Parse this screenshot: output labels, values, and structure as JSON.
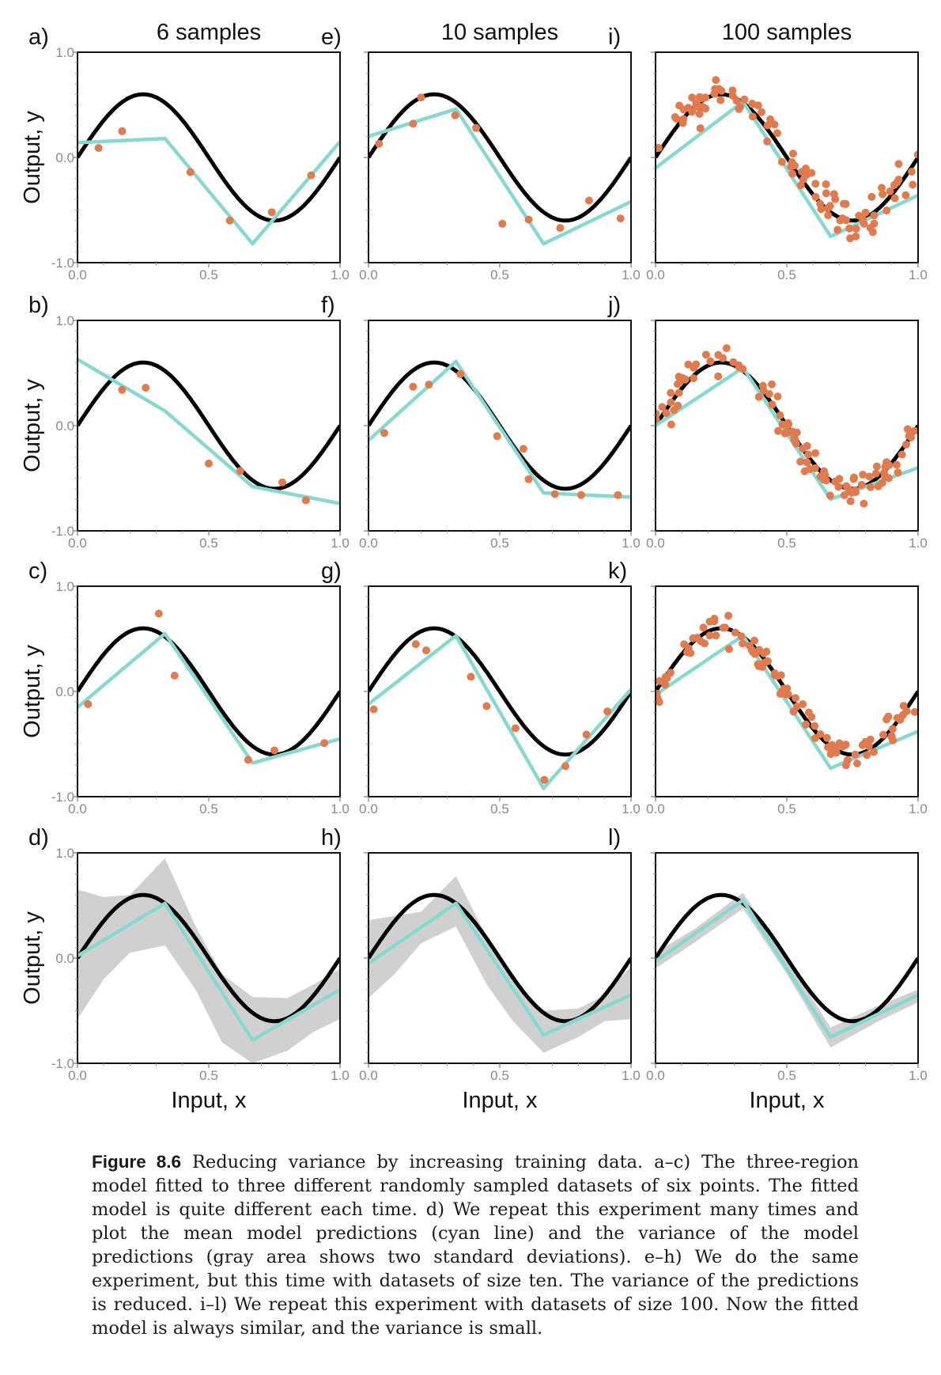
{
  "colors": {
    "truth": "#000000",
    "mean_model": "#88d8d0",
    "data_points": "#e07a4f",
    "variance_band": "#d0d0d0",
    "axes": "#111111"
  },
  "caption": {
    "label": "Figure 8.6",
    "text": " Reducing variance by increasing training data. a–c) The three-region model fitted to three different randomly sampled datasets of six points. The fitted model is quite different each time. d) We repeat this experiment many times and plot the mean model predictions (cyan line) and the variance of the model predictions (gray area shows two standard deviations). e–h) We do the same experiment, but this time with datasets of size ten. The variance of the predictions is reduced. i–l) We repeat this experiment with datasets of size 100. Now the fitted model is always similar, and the variance is small."
  },
  "chart_data": {
    "type": "line",
    "columns": [
      "6 samples",
      "10 samples",
      "100 samples"
    ],
    "xlabel": "Input, x",
    "ylabel": "Output, y",
    "xlim": [
      0,
      1
    ],
    "ylim": [
      -1,
      1
    ],
    "xticks": [
      "0.0",
      "0.5",
      "1.0"
    ],
    "yticks": [
      "-1.0",
      "0.0",
      "1.0"
    ],
    "grid": false,
    "true_function": "y = sin(2πx) scaled, peak ≈0.6 at x≈0.25, trough ≈−0.6 at x≈0.75",
    "panels": [
      {
        "label": "a)",
        "col": 0,
        "row": 0,
        "fit": [
          [
            0,
            0.14
          ],
          [
            0.333,
            0.18
          ],
          [
            0.667,
            -0.82
          ],
          [
            1,
            0.15
          ]
        ],
        "points": [
          [
            0.08,
            0.09
          ],
          [
            0.17,
            0.25
          ],
          [
            0.43,
            -0.14
          ],
          [
            0.58,
            -0.6
          ],
          [
            0.74,
            -0.52
          ],
          [
            0.89,
            -0.17
          ]
        ]
      },
      {
        "label": "b)",
        "col": 0,
        "row": 1,
        "fit": [
          [
            0,
            0.63
          ],
          [
            0.333,
            0.14
          ],
          [
            0.667,
            -0.58
          ],
          [
            1,
            -0.74
          ]
        ],
        "points": [
          [
            0.17,
            0.34
          ],
          [
            0.26,
            0.36
          ],
          [
            0.5,
            -0.36
          ],
          [
            0.62,
            -0.43
          ],
          [
            0.78,
            -0.54
          ],
          [
            0.87,
            -0.71
          ]
        ]
      },
      {
        "label": "c)",
        "col": 0,
        "row": 2,
        "fit": [
          [
            0,
            -0.15
          ],
          [
            0.333,
            0.55
          ],
          [
            0.667,
            -0.68
          ],
          [
            1,
            -0.45
          ]
        ],
        "points": [
          [
            0.04,
            -0.12
          ],
          [
            0.31,
            0.74
          ],
          [
            0.37,
            0.15
          ],
          [
            0.65,
            -0.65
          ],
          [
            0.75,
            -0.56
          ],
          [
            0.94,
            -0.49
          ]
        ]
      },
      {
        "label": "d)",
        "col": 0,
        "row": 3,
        "fit": [
          [
            0,
            0.02
          ],
          [
            0.333,
            0.52
          ],
          [
            0.667,
            -0.78
          ],
          [
            1,
            -0.3
          ]
        ],
        "band_upper": [
          [
            0,
            0.65
          ],
          [
            0.1,
            0.58
          ],
          [
            0.2,
            0.6
          ],
          [
            0.333,
            0.95
          ],
          [
            0.45,
            0.3
          ],
          [
            0.55,
            -0.15
          ],
          [
            0.667,
            -0.37
          ],
          [
            0.8,
            -0.38
          ],
          [
            0.9,
            -0.25
          ],
          [
            1,
            -0.1
          ]
        ],
        "band_lower": [
          [
            0,
            -0.58
          ],
          [
            0.1,
            -0.2
          ],
          [
            0.2,
            0.05
          ],
          [
            0.333,
            0.12
          ],
          [
            0.45,
            -0.3
          ],
          [
            0.55,
            -0.8
          ],
          [
            0.667,
            -1.0
          ],
          [
            0.8,
            -0.88
          ],
          [
            0.9,
            -0.7
          ],
          [
            1,
            -0.58
          ]
        ]
      },
      {
        "label": "e)",
        "col": 1,
        "row": 0,
        "fit": [
          [
            0,
            0.2
          ],
          [
            0.333,
            0.46
          ],
          [
            0.667,
            -0.82
          ],
          [
            1,
            -0.42
          ]
        ],
        "points": [
          [
            0.04,
            0.13
          ],
          [
            0.17,
            0.32
          ],
          [
            0.2,
            0.57
          ],
          [
            0.33,
            0.4
          ],
          [
            0.41,
            0.28
          ],
          [
            0.51,
            -0.63
          ],
          [
            0.61,
            -0.59
          ],
          [
            0.73,
            -0.67
          ],
          [
            0.84,
            -0.41
          ],
          [
            0.96,
            -0.58
          ]
        ]
      },
      {
        "label": "f)",
        "col": 1,
        "row": 1,
        "fit": [
          [
            0,
            -0.14
          ],
          [
            0.333,
            0.61
          ],
          [
            0.667,
            -0.64
          ],
          [
            1,
            -0.68
          ]
        ],
        "points": [
          [
            0.06,
            -0.07
          ],
          [
            0.17,
            0.37
          ],
          [
            0.23,
            0.39
          ],
          [
            0.35,
            0.49
          ],
          [
            0.49,
            -0.1
          ],
          [
            0.59,
            -0.22
          ],
          [
            0.61,
            -0.51
          ],
          [
            0.71,
            -0.65
          ],
          [
            0.81,
            -0.66
          ],
          [
            0.95,
            -0.66
          ]
        ]
      },
      {
        "label": "g)",
        "col": 1,
        "row": 2,
        "fit": [
          [
            0,
            -0.12
          ],
          [
            0.333,
            0.53
          ],
          [
            0.667,
            -0.92
          ],
          [
            1,
            0.02
          ]
        ],
        "points": [
          [
            0.02,
            -0.17
          ],
          [
            0.18,
            0.45
          ],
          [
            0.22,
            0.39
          ],
          [
            0.39,
            0.14
          ],
          [
            0.45,
            -0.14
          ],
          [
            0.56,
            -0.35
          ],
          [
            0.67,
            -0.84
          ],
          [
            0.75,
            -0.71
          ],
          [
            0.83,
            -0.41
          ],
          [
            0.91,
            -0.19
          ]
        ]
      },
      {
        "label": "h)",
        "col": 1,
        "row": 3,
        "fit": [
          [
            0,
            -0.05
          ],
          [
            0.333,
            0.52
          ],
          [
            0.667,
            -0.73
          ],
          [
            1,
            -0.35
          ]
        ],
        "band_upper": [
          [
            0,
            0.36
          ],
          [
            0.1,
            0.4
          ],
          [
            0.2,
            0.44
          ],
          [
            0.333,
            0.78
          ],
          [
            0.45,
            0.2
          ],
          [
            0.55,
            -0.2
          ],
          [
            0.667,
            -0.5
          ],
          [
            0.8,
            -0.48
          ],
          [
            0.9,
            -0.35
          ],
          [
            1,
            -0.08
          ]
        ],
        "band_lower": [
          [
            0,
            -0.38
          ],
          [
            0.1,
            -0.15
          ],
          [
            0.2,
            0.14
          ],
          [
            0.333,
            0.3
          ],
          [
            0.45,
            -0.25
          ],
          [
            0.55,
            -0.6
          ],
          [
            0.667,
            -0.9
          ],
          [
            0.8,
            -0.75
          ],
          [
            0.9,
            -0.6
          ],
          [
            1,
            -0.58
          ]
        ]
      },
      {
        "label": "i)",
        "col": 2,
        "row": 0,
        "fit": [
          [
            0,
            -0.1
          ],
          [
            0.333,
            0.53
          ],
          [
            0.667,
            -0.75
          ],
          [
            1,
            -0.36
          ]
        ],
        "n_points": 100,
        "point_noise": 0.12,
        "seed": 7
      },
      {
        "label": "j)",
        "col": 2,
        "row": 1,
        "fit": [
          [
            0,
            0.0
          ],
          [
            0.333,
            0.55
          ],
          [
            0.667,
            -0.7
          ],
          [
            1,
            -0.4
          ]
        ],
        "n_points": 100,
        "point_noise": 0.1,
        "seed": 19
      },
      {
        "label": "k)",
        "col": 2,
        "row": 2,
        "fit": [
          [
            0,
            -0.03
          ],
          [
            0.333,
            0.53
          ],
          [
            0.667,
            -0.73
          ],
          [
            1,
            -0.38
          ]
        ],
        "n_points": 100,
        "point_noise": 0.1,
        "seed": 31
      },
      {
        "label": "l)",
        "col": 2,
        "row": 3,
        "fit": [
          [
            0,
            -0.03
          ],
          [
            0.333,
            0.55
          ],
          [
            0.667,
            -0.75
          ],
          [
            1,
            -0.35
          ]
        ],
        "band_upper": [
          [
            0,
            0.05
          ],
          [
            0.15,
            0.28
          ],
          [
            0.333,
            0.62
          ],
          [
            0.5,
            0.0
          ],
          [
            0.667,
            -0.66
          ],
          [
            0.85,
            -0.45
          ],
          [
            1,
            -0.3
          ]
        ],
        "band_lower": [
          [
            0,
            -0.1
          ],
          [
            0.15,
            0.15
          ],
          [
            0.333,
            0.47
          ],
          [
            0.5,
            -0.15
          ],
          [
            0.667,
            -0.85
          ],
          [
            0.85,
            -0.6
          ],
          [
            1,
            -0.42
          ]
        ]
      }
    ]
  }
}
